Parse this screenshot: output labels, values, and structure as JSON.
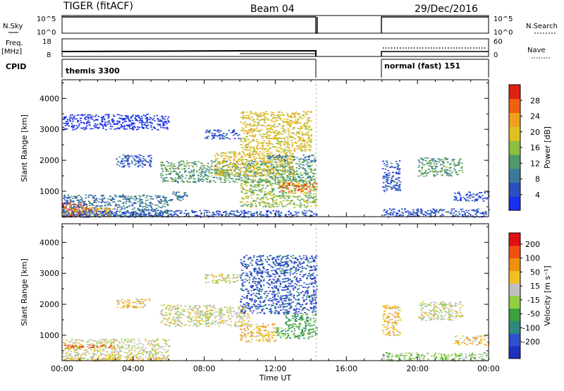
{
  "header": {
    "station": "TIGER (fitACF)",
    "beam": "Beam 04",
    "date": "29/Dec/2016"
  },
  "strip_labels": {
    "nsky": "N.Sky",
    "nsky_ticks": [
      "10^5",
      "10^0"
    ],
    "nsearch": "N.Search",
    "freq_line1": "Freq.",
    "freq_line2": "[MHz]",
    "freq_ticks": [
      "18",
      "8"
    ],
    "nave": "Nave",
    "nave_ticks": [
      "60",
      "0"
    ],
    "cpid": "CPID",
    "cpid_segments": [
      "themis 3300",
      "normal (fast) 151"
    ]
  },
  "chart_data": [
    {
      "type": "heatmap",
      "panel": "power",
      "ylabel": "Slant Range [km]",
      "xlabel": "",
      "x_tick_labels": [
        "00:00",
        "04:00",
        "08:00",
        "12:00",
        "16:00",
        "20:00",
        "00:00"
      ],
      "x_ticks_hours": [
        0,
        4,
        8,
        12,
        16,
        20,
        24
      ],
      "y_ticks": [
        1000,
        2000,
        3000,
        4000
      ],
      "xlim": [
        0,
        24
      ],
      "ylim": [
        180,
        4600
      ],
      "data_gap_hours": [
        14.3,
        18.0
      ],
      "colorbar": {
        "label": "Power [dB]",
        "ticks": [
          "4",
          "8",
          "12",
          "16",
          "20",
          "24",
          "28"
        ],
        "colors": [
          "#1a2ff0",
          "#2a4fc0",
          "#3a7a9a",
          "#4f9a6a",
          "#8fbf40",
          "#e0c020",
          "#f0a020",
          "#f06010",
          "#e02010"
        ]
      },
      "regions": [
        {
          "t0": 0.0,
          "t1": 1.5,
          "r0": 180,
          "r1": 700,
          "level": 8
        },
        {
          "t0": 0.0,
          "t1": 6.0,
          "r0": 180,
          "r1": 900,
          "level": 2
        },
        {
          "t0": 0.0,
          "t1": 2.8,
          "r0": 180,
          "r1": 500,
          "level": 6
        },
        {
          "t0": 6.0,
          "t1": 7.0,
          "r0": 700,
          "r1": 1000,
          "level": 2
        },
        {
          "t0": 0.0,
          "t1": 14.3,
          "r0": 180,
          "r1": 400,
          "level": 1
        },
        {
          "t0": 10.0,
          "t1": 14.3,
          "r0": 500,
          "r1": 1400,
          "level": 4
        },
        {
          "t0": 12.2,
          "t1": 14.3,
          "r0": 1000,
          "r1": 1300,
          "level": 7
        },
        {
          "t0": 5.5,
          "t1": 14.2,
          "r0": 1300,
          "r1": 2000,
          "level": 3
        },
        {
          "t0": 8.5,
          "t1": 13.0,
          "r0": 1500,
          "r1": 2300,
          "level": 5
        },
        {
          "t0": 11.5,
          "t1": 14.3,
          "r0": 2000,
          "r1": 2200,
          "level": 2
        },
        {
          "t0": 3.0,
          "t1": 5.0,
          "r0": 1800,
          "r1": 2200,
          "level": 1
        },
        {
          "t0": 8.0,
          "t1": 10.0,
          "r0": 2700,
          "r1": 3000,
          "level": 1
        },
        {
          "t0": 10.0,
          "t1": 14.0,
          "r0": 2300,
          "r1": 3600,
          "level": 5
        },
        {
          "t0": 0.0,
          "t1": 6.0,
          "r0": 3000,
          "r1": 3500,
          "level": 0
        },
        {
          "t0": 18.0,
          "t1": 24.0,
          "r0": 180,
          "r1": 450,
          "level": 1
        },
        {
          "t0": 20.0,
          "t1": 22.5,
          "r0": 1500,
          "r1": 2100,
          "level": 3
        },
        {
          "t0": 18.0,
          "t1": 19.0,
          "r0": 1000,
          "r1": 2000,
          "level": 1
        },
        {
          "t0": 22.0,
          "t1": 24.0,
          "r0": 700,
          "r1": 1000,
          "level": 1
        }
      ]
    },
    {
      "type": "heatmap",
      "panel": "velocity",
      "ylabel": "Slant Range [km]",
      "xlabel": "Time UT",
      "x_tick_labels": [
        "00:00",
        "04:00",
        "08:00",
        "12:00",
        "16:00",
        "20:00",
        "00:00"
      ],
      "x_ticks_hours": [
        0,
        4,
        8,
        12,
        16,
        20,
        24
      ],
      "y_ticks": [
        1000,
        2000,
        3000,
        4000
      ],
      "xlim": [
        0,
        24
      ],
      "ylim": [
        180,
        4600
      ],
      "data_gap_hours": [
        14.3,
        18.0
      ],
      "colorbar": {
        "label": "Velocity [m s⁻¹]",
        "ticks": [
          "200",
          "100",
          "50",
          "15",
          "-15",
          "-50",
          "-100",
          "-200"
        ],
        "colors": [
          "#2030c0",
          "#3050d0",
          "#2a8a7a",
          "#3aa040",
          "#8fd040",
          "#c0c0c0",
          "#f0c020",
          "#f09010",
          "#f05010",
          "#e01010"
        ]
      },
      "regions": [
        {
          "t0": 0.0,
          "t1": 6.0,
          "r0": 180,
          "r1": 900,
          "level": 5
        },
        {
          "t0": 0.0,
          "t1": 3.0,
          "r0": 600,
          "r1": 700,
          "level": 8
        },
        {
          "t0": 0.0,
          "t1": 6.0,
          "r0": 180,
          "r1": 300,
          "level": 6
        },
        {
          "t0": 5.5,
          "t1": 10.5,
          "r0": 1300,
          "r1": 2000,
          "level": 5
        },
        {
          "t0": 10.0,
          "t1": 14.3,
          "r0": 1700,
          "r1": 3600,
          "level": 1
        },
        {
          "t0": 10.0,
          "t1": 12.0,
          "r0": 800,
          "r1": 1400,
          "level": 6
        },
        {
          "t0": 12.0,
          "t1": 14.3,
          "r0": 900,
          "r1": 1300,
          "level": 3
        },
        {
          "t0": 12.5,
          "t1": 14.3,
          "r0": 1300,
          "r1": 1700,
          "level": 3
        },
        {
          "t0": 8.0,
          "t1": 10.0,
          "r0": 2700,
          "r1": 3000,
          "level": 5
        },
        {
          "t0": 3.0,
          "t1": 5.0,
          "r0": 1900,
          "r1": 2200,
          "level": 6
        },
        {
          "t0": 18.0,
          "t1": 24.0,
          "r0": 180,
          "r1": 450,
          "level": 4
        },
        {
          "t0": 20.0,
          "t1": 22.5,
          "r0": 1500,
          "r1": 2100,
          "level": 5
        },
        {
          "t0": 18.0,
          "t1": 19.0,
          "r0": 1000,
          "r1": 2000,
          "level": 6
        },
        {
          "t0": 22.0,
          "t1": 24.0,
          "r0": 700,
          "r1": 1000,
          "level": 6
        }
      ]
    }
  ]
}
